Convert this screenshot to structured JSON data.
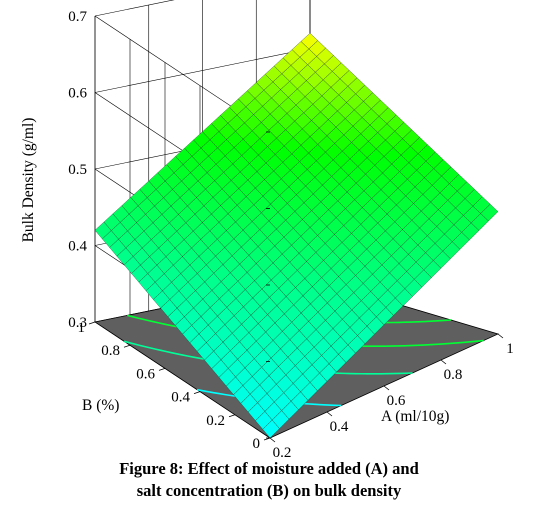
{
  "chart_data": {
    "type": "surface3d",
    "zlabel": "Bulk Density (g/ml)",
    "xlabel": "A (ml/10g)",
    "ylabel": "B (%)",
    "x_range": [
      0.2,
      1
    ],
    "y_range": [
      0,
      1
    ],
    "zlim": [
      0.3,
      0.7
    ],
    "x_ticks": [
      "0.2",
      "0.4",
      "0.6",
      "0.8",
      "1"
    ],
    "y_ticks": [
      "0",
      "0.2",
      "0.4",
      "0.6",
      "0.8",
      "1"
    ],
    "z_ticks": [
      "0.3",
      "0.4",
      "0.5",
      "0.6",
      "0.7"
    ],
    "surface_corners": [
      {
        "A": 0.2,
        "B": 0,
        "z": 0.3
      },
      {
        "A": 1,
        "B": 0,
        "z": 0.46
      },
      {
        "A": 1,
        "B": 1,
        "z": 0.62
      },
      {
        "A": 0.2,
        "B": 1,
        "z": 0.42
      }
    ],
    "colormap": [
      "#00ffff",
      "#00ff88",
      "#00ff00",
      "#ffff00"
    ],
    "floor_color": "#5f5f5f"
  },
  "caption": {
    "line1": "Figure 8: Effect of moisture added (A) and",
    "line2": "salt concentration (B) on bulk density"
  }
}
